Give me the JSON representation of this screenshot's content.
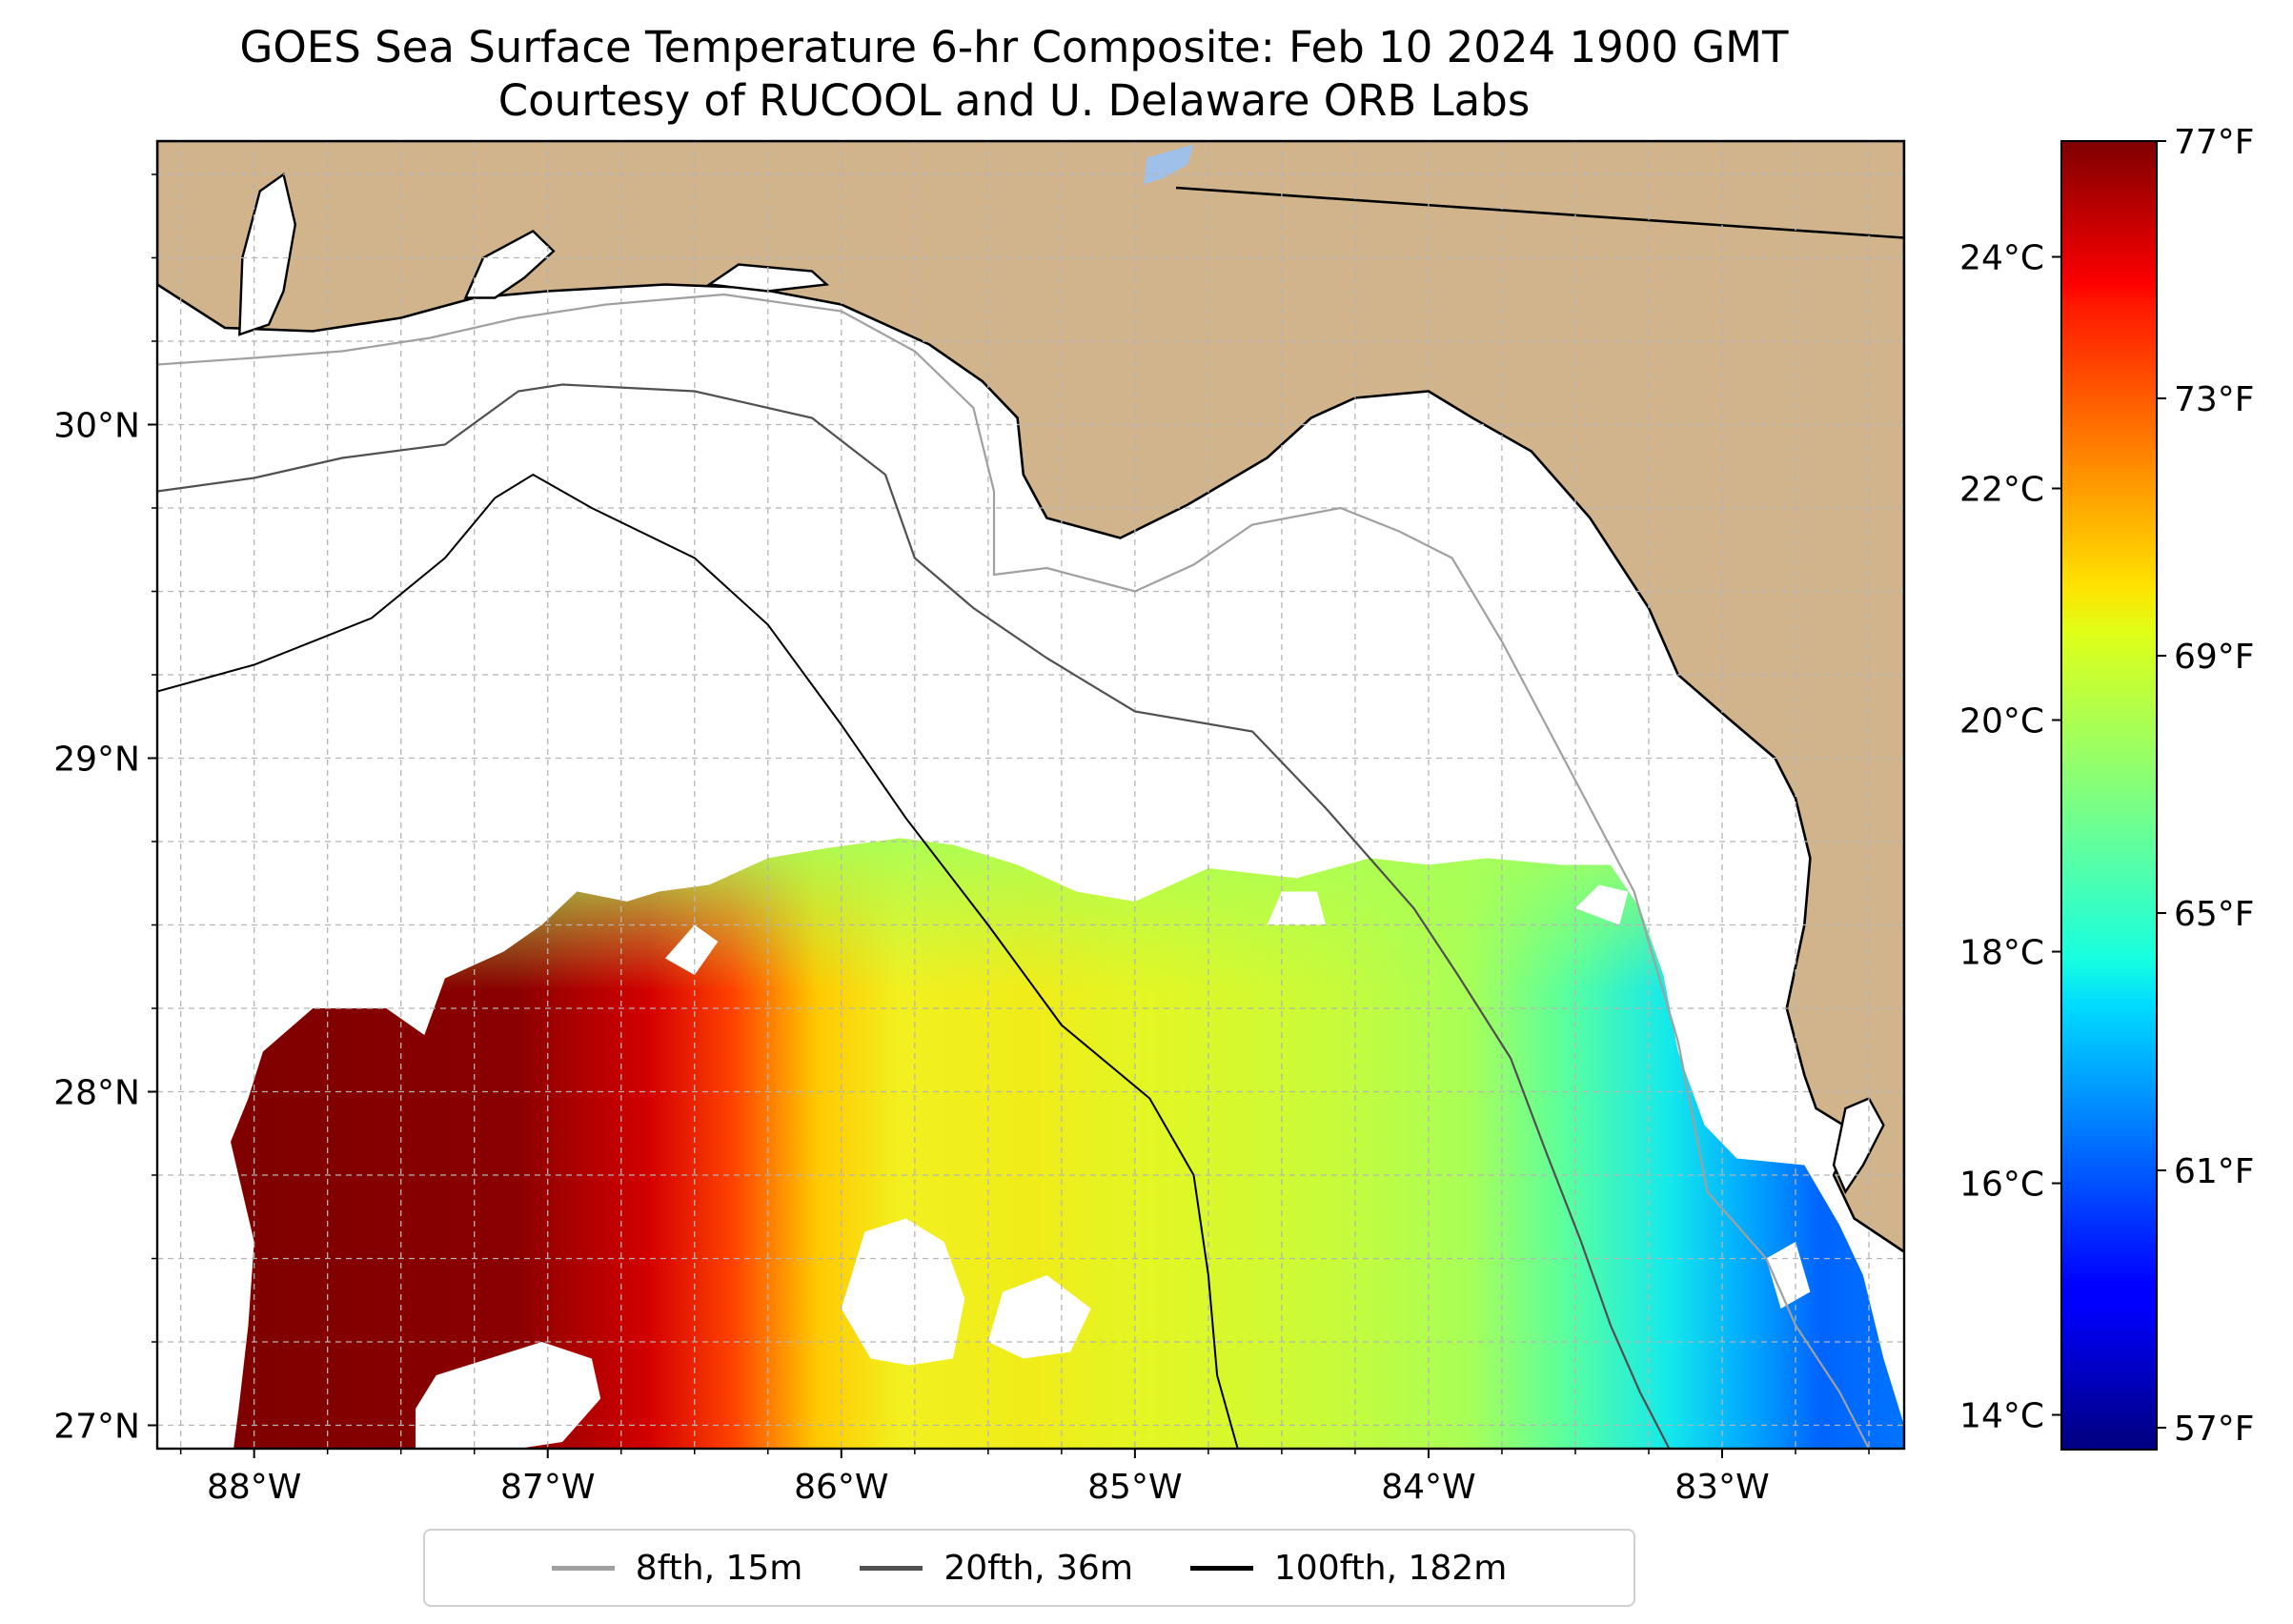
{
  "title": "GOES Sea Surface Temperature 6-hr Composite: Feb 10 2024 1900 GMT",
  "subtitle": "Courtesy of RUCOOL and U. Delaware ORB Labs",
  "map": {
    "lon_min": -88.33,
    "lon_max": -82.38,
    "lat_min": 26.93,
    "lat_max": 30.85,
    "land_color": "#d2b48c",
    "lat_ticks": [
      {
        "value": 30,
        "label": "30°N"
      },
      {
        "value": 29,
        "label": "29°N"
      },
      {
        "value": 28,
        "label": "28°N"
      },
      {
        "value": 27,
        "label": "27°N"
      }
    ],
    "lon_ticks": [
      {
        "value": -88,
        "label": "88°W"
      },
      {
        "value": -87,
        "label": "87°W"
      },
      {
        "value": -86,
        "label": "86°W"
      },
      {
        "value": -85,
        "label": "85°W"
      },
      {
        "value": -84,
        "label": "84°W"
      },
      {
        "value": -83,
        "label": "83°W"
      }
    ],
    "grid": true
  },
  "colorbar": {
    "colormap": "jet",
    "c_min": 13.7,
    "c_max": 25.0,
    "celsius_ticks": [
      {
        "value": 24,
        "label": "24°C"
      },
      {
        "value": 22,
        "label": "22°C"
      },
      {
        "value": 20,
        "label": "20°C"
      },
      {
        "value": 18,
        "label": "18°C"
      },
      {
        "value": 16,
        "label": "16°C"
      },
      {
        "value": 14,
        "label": "14°C"
      }
    ],
    "fahrenheit_ticks": [
      {
        "value": 77,
        "label": "77°F"
      },
      {
        "value": 73,
        "label": "73°F"
      },
      {
        "value": 69,
        "label": "69°F"
      },
      {
        "value": 65,
        "label": "65°F"
      },
      {
        "value": 61,
        "label": "61°F"
      },
      {
        "value": 57,
        "label": "57°F"
      }
    ]
  },
  "legend": {
    "placement": "bottom-center",
    "items": [
      {
        "label": "8fth, 15m",
        "color": "#a0a0a0"
      },
      {
        "label": "20fth, 36m",
        "color": "#505050"
      },
      {
        "label": "100fth, 182m",
        "color": "#000000"
      }
    ]
  }
}
